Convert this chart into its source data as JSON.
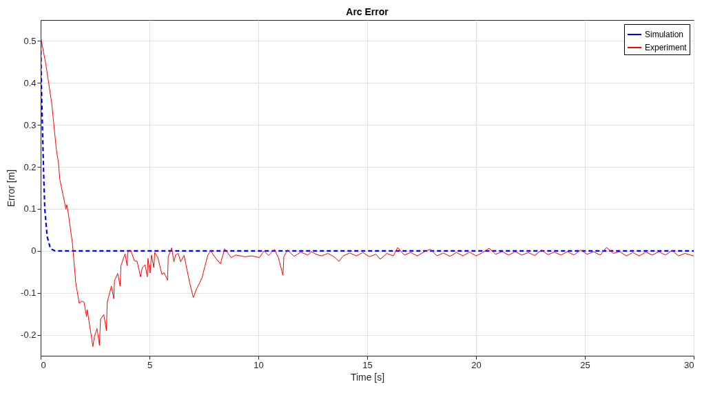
{
  "chart_data": {
    "type": "line",
    "title": "Arc Error",
    "xlabel": "Time [s]",
    "ylabel": "Error [m]",
    "xlim": [
      0,
      30
    ],
    "xticks": [
      0,
      5,
      10,
      15,
      20,
      25,
      30
    ],
    "ylim": [
      -0.25,
      0.55
    ],
    "yticks": [
      -0.2,
      -0.1,
      0,
      0.1,
      0.2,
      0.3,
      0.4,
      0.5
    ],
    "grid": true,
    "legend": "top right",
    "marker": "none",
    "series": [
      {
        "name": "Simulation",
        "color": "#0000ff",
        "line_style": "dashed",
        "x": [
          0,
          0.03,
          0.08,
          0.14,
          0.19,
          0.3,
          0.45,
          0.66,
          30
        ],
        "values": [
          0.51,
          0.4,
          0.3,
          0.18,
          0.1,
          0.034,
          0.005,
          0,
          0
        ]
      },
      {
        "name": "Experiment",
        "color": "#ff0000",
        "line_style": "solid",
        "x": [
          0,
          0.24,
          0.51,
          0.72,
          0.82,
          0.88,
          1.12,
          1.16,
          1.2,
          1.26,
          1.46,
          1.49,
          1.61,
          1.77,
          1.88,
          1.99,
          2.11,
          2.14,
          2.4,
          2.46,
          2.59,
          2.7,
          2.75,
          2.9,
          3.02,
          3.06,
          3.25,
          3.36,
          3.39,
          3.54,
          3.65,
          3.69,
          3.88,
          3.97,
          4.01,
          4.15,
          4.3,
          4.43,
          4.59,
          4.67,
          4.8,
          4.9,
          4.93,
          5.03,
          5.09,
          5.2,
          5.24,
          5.38,
          5.57,
          5.67,
          5.83,
          5.86,
          6.02,
          6.12,
          6.2,
          6.32,
          6.43,
          6.59,
          6.84,
          7.01,
          7.15,
          7.41,
          7.46,
          7.68,
          7.81,
          8.05,
          8.26,
          8.45,
          8.75,
          8.96,
          9.38,
          9.7,
          10.05,
          10.26,
          10.47,
          10.74,
          10.92,
          11.13,
          11.17,
          11.34,
          11.64,
          11.95,
          12.27,
          12.43,
          12.69,
          12.9,
          13.2,
          13.5,
          13.7,
          13.9,
          14.2,
          14.5,
          14.8,
          15.1,
          15.4,
          15.6,
          15.9,
          16.2,
          16.4,
          16.7,
          17.0,
          17.3,
          17.6,
          17.9,
          18.2,
          18.5,
          18.8,
          19.1,
          19.4,
          19.7,
          20.0,
          20.3,
          20.6,
          20.9,
          21.2,
          21.5,
          21.8,
          22.1,
          22.4,
          22.7,
          23.0,
          23.3,
          23.6,
          23.9,
          24.2,
          24.5,
          24.8,
          25.1,
          25.4,
          25.7,
          26.0,
          26.3,
          26.6,
          26.9,
          27.2,
          27.5,
          27.8,
          28.1,
          28.4,
          28.7,
          29.0,
          29.3,
          29.6,
          30.0
        ],
        "values": [
          0.51,
          0.444,
          0.351,
          0.242,
          0.209,
          0.17,
          0.11,
          0.099,
          0.11,
          0.093,
          0.018,
          0,
          -0.075,
          -0.125,
          -0.12,
          -0.122,
          -0.157,
          -0.14,
          -0.228,
          -0.206,
          -0.185,
          -0.225,
          -0.163,
          -0.152,
          -0.19,
          -0.122,
          -0.084,
          -0.114,
          -0.071,
          -0.054,
          -0.084,
          -0.035,
          -0.007,
          -0.035,
          -0.002,
          0,
          -0.023,
          -0.025,
          -0.062,
          -0.04,
          -0.033,
          -0.062,
          -0.018,
          -0.053,
          -0.01,
          -0.04,
          -0.004,
          -0.015,
          -0.056,
          -0.052,
          -0.07,
          -0.014,
          0.007,
          -0.026,
          -0.01,
          -0.006,
          -0.026,
          -0.011,
          -0.075,
          -0.111,
          -0.092,
          -0.065,
          -0.054,
          -0.01,
          0,
          -0.018,
          -0.031,
          0.005,
          -0.016,
          -0.01,
          -0.014,
          -0.012,
          -0.016,
          0,
          -0.011,
          0.003,
          -0.016,
          -0.058,
          -0.014,
          0.002,
          -0.013,
          -0.003,
          -0.01,
          -0.002,
          -0.009,
          -0.012,
          -0.006,
          -0.015,
          -0.025,
          -0.012,
          -0.005,
          -0.012,
          -0.004,
          -0.014,
          -0.008,
          -0.02,
          -0.006,
          -0.012,
          0.008,
          -0.01,
          -0.004,
          -0.012,
          -0.003,
          0.004,
          -0.012,
          -0.005,
          -0.013,
          -0.004,
          -0.012,
          -0.003,
          -0.012,
          -0.004,
          0.006,
          -0.008,
          -0.002,
          -0.01,
          -0.002,
          -0.01,
          -0.004,
          -0.011,
          0.002,
          -0.009,
          -0.003,
          -0.01,
          -0.002,
          -0.01,
          0.002,
          -0.008,
          -0.002,
          -0.01,
          0.008,
          -0.006,
          -0.002,
          -0.012,
          -0.004,
          -0.012,
          -0.003,
          -0.01,
          -0.002,
          -0.01,
          0.001,
          -0.012,
          -0.006,
          -0.012
        ]
      }
    ]
  }
}
